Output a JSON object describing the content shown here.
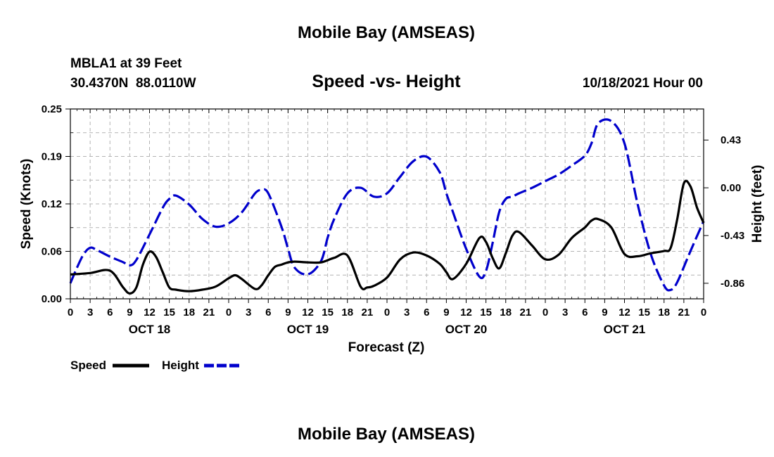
{
  "header": {
    "title": "Mobile Bay (AMSEAS)",
    "station": "MBLA1 at 39 Feet",
    "coords": "30.4370N  88.0110W",
    "subtitle": "Speed -vs- Height",
    "datetime": "10/18/2021 Hour 00"
  },
  "footer": {
    "title": "Mobile Bay (AMSEAS)"
  },
  "chart_data": {
    "type": "line",
    "title": "Speed -vs- Height",
    "xlabel": "Forecast (Z)",
    "ylabel_left": "Speed (Knots)",
    "ylabel_right": "Height (feet)",
    "x_range": [
      0,
      96
    ],
    "y_left_range": [
      0,
      0.25
    ],
    "y_right_range": [
      -1.0,
      0.71
    ],
    "x_tick_values": [
      0,
      3,
      6,
      9,
      12,
      15,
      18,
      21,
      24,
      27,
      30,
      33,
      36,
      39,
      42,
      45,
      48,
      51,
      54,
      57,
      60,
      63,
      66,
      69,
      72,
      75,
      78,
      81,
      84,
      87,
      90,
      93,
      96
    ],
    "x_tick_labels": [
      "0",
      "3",
      "6",
      "9",
      "12",
      "15",
      "18",
      "21",
      "0",
      "3",
      "6",
      "9",
      "12",
      "15",
      "18",
      "21",
      "0",
      "3",
      "6",
      "9",
      "12",
      "15",
      "18",
      "21",
      "0",
      "3",
      "6",
      "9",
      "12",
      "15",
      "18",
      "21",
      "0"
    ],
    "day_labels": [
      {
        "x": 12,
        "label": "OCT 18"
      },
      {
        "x": 36,
        "label": "OCT 19"
      },
      {
        "x": 60,
        "label": "OCT 20"
      },
      {
        "x": 84,
        "label": "OCT 21"
      }
    ],
    "y_left_ticks": [
      {
        "value": 0.0,
        "label": "0.00"
      },
      {
        "value": 0.0625,
        "label": "0.06"
      },
      {
        "value": 0.125,
        "label": "0.12"
      },
      {
        "value": 0.1875,
        "label": "0.19"
      },
      {
        "value": 0.25,
        "label": "0.25"
      }
    ],
    "y_right_ticks": [
      {
        "value": -0.86,
        "label": "-0.86"
      },
      {
        "value": -0.43,
        "label": "-0.43"
      },
      {
        "value": 0.0,
        "label": "0.00"
      },
      {
        "value": 0.43,
        "label": "0.43"
      }
    ],
    "grid": true,
    "legend_position": "bottom-left",
    "series": [
      {
        "name": "Speed",
        "axis": "left",
        "color": "#000000",
        "dash": "solid",
        "x": [
          0,
          3,
          6,
          8,
          9,
          10,
          11,
          12,
          13,
          14,
          15,
          16,
          18,
          20,
          22,
          24,
          25,
          26,
          28,
          29,
          30,
          31,
          32,
          33,
          34,
          36,
          38,
          40,
          42,
          44,
          45,
          46,
          48,
          50,
          52,
          54,
          56,
          57,
          58,
          60,
          62,
          63,
          64,
          65,
          66,
          67,
          68,
          70,
          72,
          74,
          76,
          78,
          79,
          80,
          82,
          84,
          86,
          88,
          90,
          91,
          92,
          93,
          94,
          95,
          96
        ],
        "y": [
          0.032,
          0.034,
          0.037,
          0.015,
          0.007,
          0.015,
          0.045,
          0.062,
          0.055,
          0.035,
          0.015,
          0.012,
          0.01,
          0.012,
          0.016,
          0.027,
          0.031,
          0.026,
          0.013,
          0.018,
          0.031,
          0.042,
          0.045,
          0.048,
          0.049,
          0.048,
          0.048,
          0.054,
          0.057,
          0.016,
          0.015,
          0.017,
          0.028,
          0.052,
          0.061,
          0.057,
          0.046,
          0.035,
          0.026,
          0.046,
          0.08,
          0.075,
          0.054,
          0.04,
          0.06,
          0.083,
          0.088,
          0.07,
          0.052,
          0.058,
          0.08,
          0.094,
          0.103,
          0.105,
          0.094,
          0.059,
          0.056,
          0.06,
          0.063,
          0.067,
          0.105,
          0.152,
          0.148,
          0.12,
          0.1
        ]
      },
      {
        "name": "Height",
        "axis": "right",
        "color": "#0000cc",
        "dash": "dashed",
        "x": [
          0,
          1,
          2,
          3,
          4,
          6,
          8,
          9,
          10,
          12,
          14,
          15,
          16,
          18,
          20,
          22,
          24,
          26,
          28,
          29,
          30,
          32,
          33,
          34,
          36,
          38,
          39,
          40,
          42,
          44,
          46,
          48,
          50,
          52,
          54,
          56,
          57,
          58,
          60,
          62,
          63,
          64,
          65,
          66,
          67,
          68,
          70,
          72,
          74,
          76,
          78,
          79,
          80,
          82,
          84,
          86,
          88,
          90,
          91,
          92,
          94,
          96
        ],
        "y": [
          -0.86,
          -0.72,
          -0.6,
          -0.54,
          -0.56,
          -0.62,
          -0.67,
          -0.7,
          -0.65,
          -0.42,
          -0.18,
          -0.1,
          -0.07,
          -0.15,
          -0.28,
          -0.35,
          -0.32,
          -0.22,
          -0.05,
          -0.02,
          -0.05,
          -0.35,
          -0.55,
          -0.72,
          -0.78,
          -0.66,
          -0.45,
          -0.28,
          -0.05,
          0.0,
          -0.08,
          -0.05,
          0.1,
          0.24,
          0.28,
          0.14,
          -0.05,
          -0.22,
          -0.55,
          -0.8,
          -0.75,
          -0.5,
          -0.22,
          -0.1,
          -0.08,
          -0.05,
          0.0,
          0.06,
          0.12,
          0.2,
          0.29,
          0.4,
          0.58,
          0.6,
          0.4,
          -0.15,
          -0.6,
          -0.88,
          -0.92,
          -0.85,
          -0.57,
          -0.3
        ]
      }
    ],
    "legend": [
      {
        "label": "Speed"
      },
      {
        "label": "Height"
      }
    ]
  }
}
